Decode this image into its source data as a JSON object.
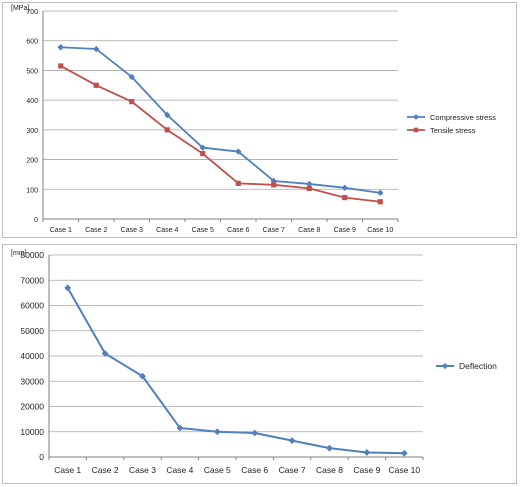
{
  "chart_data": [
    {
      "type": "line",
      "unit_label": "[MPa]",
      "categories": [
        "Case 1",
        "Case 2",
        "Case 3",
        "Case 4",
        "Case 5",
        "Case 6",
        "Case 7",
        "Case 8",
        "Case 9",
        "Case 10"
      ],
      "ylim": [
        0,
        700
      ],
      "yticks": [
        "0",
        "100",
        "200",
        "300",
        "400",
        "500",
        "600",
        "700"
      ],
      "grid": true,
      "legend_position": "right",
      "series": [
        {
          "name": "Compressive stress",
          "color": "#4f81bd",
          "marker": "diamond",
          "values": [
            578,
            572,
            478,
            350,
            240,
            227,
            128,
            118,
            105,
            88
          ]
        },
        {
          "name": "Tensile stress",
          "color": "#c0504d",
          "marker": "square",
          "values": [
            515,
            450,
            395,
            300,
            220,
            120,
            115,
            103,
            72,
            58
          ]
        }
      ]
    },
    {
      "type": "line",
      "unit_label": "[mm]",
      "categories": [
        "Case 1",
        "Case 2",
        "Case 3",
        "Case 4",
        "Case 5",
        "Case 6",
        "Case 7",
        "Case 8",
        "Case 9",
        "Case 10"
      ],
      "ylim": [
        0,
        80000
      ],
      "yticks": [
        "0",
        "10000",
        "20000",
        "30000",
        "40000",
        "50000",
        "60000",
        "70000",
        "80000"
      ],
      "grid": true,
      "legend_position": "right",
      "series": [
        {
          "name": "Deflection",
          "color": "#4f81bd",
          "marker": "diamond",
          "values": [
            67000,
            41000,
            32000,
            11500,
            10000,
            9500,
            6500,
            3500,
            1800,
            1500
          ]
        }
      ]
    }
  ]
}
